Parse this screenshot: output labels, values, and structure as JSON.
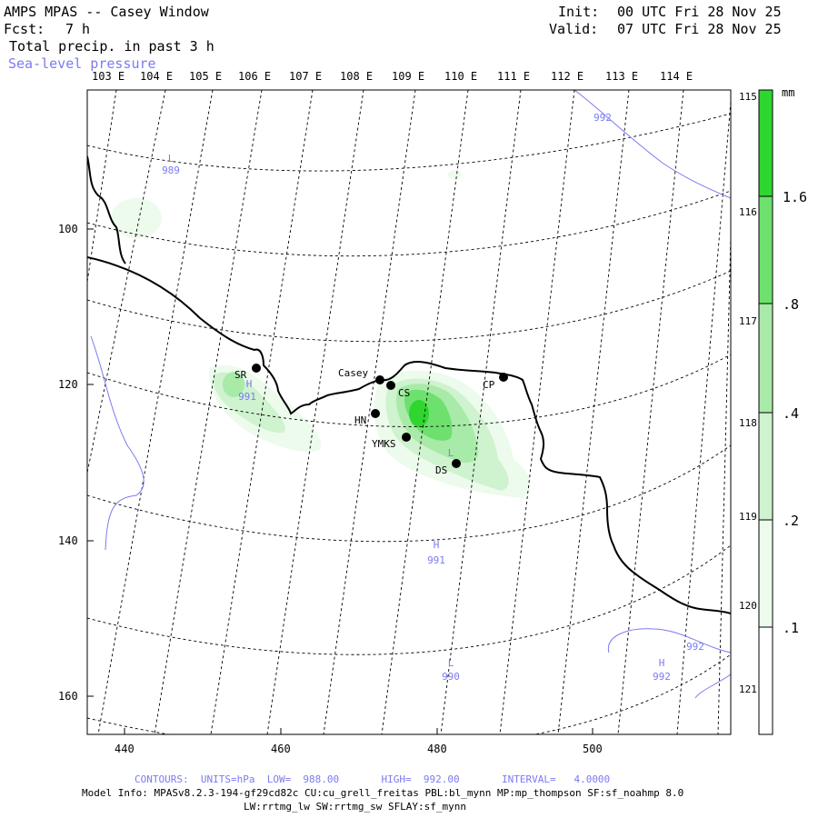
{
  "header": {
    "title": "AMPS MPAS -- Casey Window",
    "forecast_label": "Fcst:",
    "forecast_value": "7 h",
    "field_label": "Total precip. in past 3 h",
    "overlay_label": "Sea-level pressure",
    "init_label": "Init:",
    "init_value": "00 UTC Fri 28 Nov 25",
    "valid_label": "Valid:",
    "valid_value": "07 UTC Fri 28 Nov 25"
  },
  "map": {
    "longitude_labels": [
      "103 E",
      "104 E",
      "105 E",
      "106 E",
      "107 E",
      "108 E",
      "109 E",
      "110 E",
      "111 E",
      "112 E",
      "113 E",
      "114 E"
    ],
    "right_labels": [
      "115 E",
      "116 E",
      "117 E",
      "118 E",
      "119 E",
      "120 E",
      "121 E"
    ],
    "y_ticks": [
      "100",
      "120",
      "140",
      "160"
    ],
    "x_ticks": [
      "440",
      "460",
      "480",
      "500"
    ],
    "stations": [
      {
        "id": "SR",
        "label": "SR"
      },
      {
        "id": "casey",
        "label": "Casey"
      },
      {
        "id": "CS",
        "label": "CS"
      },
      {
        "id": "CP",
        "label": "CP"
      },
      {
        "id": "HN",
        "label": "HN"
      },
      {
        "id": "YMKS",
        "label": "YMKS"
      },
      {
        "id": "DS",
        "label": "DS"
      }
    ],
    "pressure_labels": [
      {
        "id": "l-nw",
        "letter": "L",
        "value": "989"
      },
      {
        "id": "h-sr",
        "letter": "H",
        "value": "991"
      },
      {
        "id": "l-ds",
        "letter": "L",
        "value": ""
      },
      {
        "id": "h-center",
        "letter": "H",
        "value": "991"
      },
      {
        "id": "l-south",
        "letter": "L",
        "value": "990"
      },
      {
        "id": "h-se",
        "letter": "H",
        "value": "992"
      }
    ],
    "isobar_labels": [
      "992",
      "992"
    ]
  },
  "colorbar": {
    "unit": "mm",
    "tick_labels": [
      "1.6",
      ".8",
      ".4",
      ".2",
      ".1"
    ],
    "levels": [
      0.1,
      0.2,
      0.4,
      0.8,
      1.6
    ],
    "colors": [
      "#ecfbec",
      "#cff2cf",
      "#a8eaa8",
      "#6ee06e",
      "#2fd62f"
    ]
  },
  "footer": {
    "contours": "CONTOURS:  UNITS=hPa  LOW=  988.00       HIGH=  992.00       INTERVAL=   4.0000",
    "model_info": "Model Info: MPASv8.2.3-194-gf29cd82c CU:cu_grell_freitas PBL:bl_mynn MP:mp_thompson SF:sf_noahmp 8.0",
    "model_info2": "LW:rrtmg_lw SW:rrtmg_sw SFLAY:sf_mynn"
  }
}
